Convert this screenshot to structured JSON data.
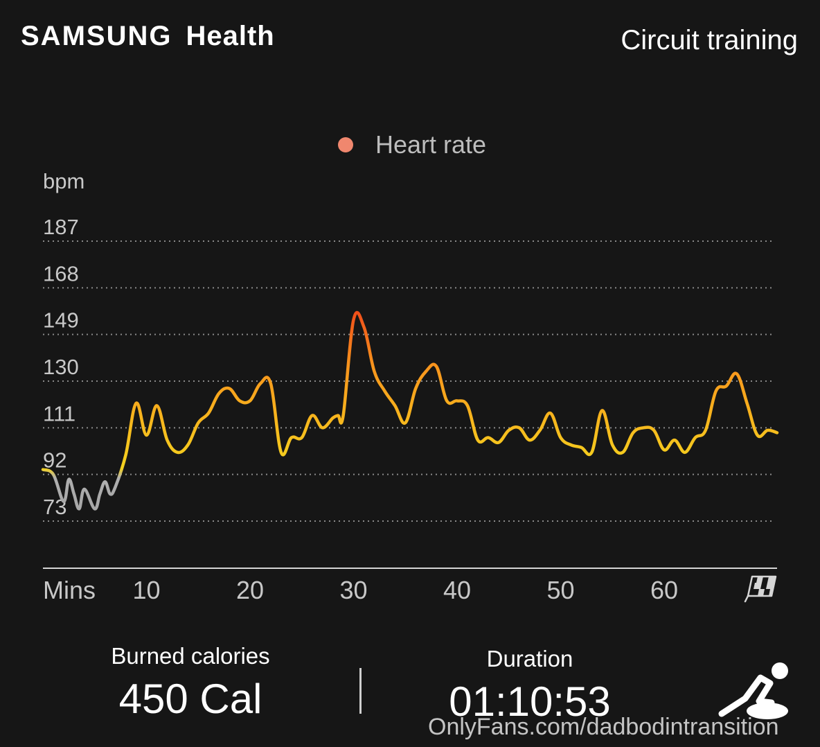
{
  "header": {
    "brand": "SAMSUNG",
    "product": "Health",
    "workout_title": "Circuit training"
  },
  "stats": {
    "calories_label": "Burned calories",
    "calories_value": "450 Cal",
    "duration_label": "Duration",
    "duration_value": "01:10:53"
  },
  "watermark": "OnlyFans.com/dadbodintransition",
  "icons": {
    "finish": "checkered-flag-icon",
    "activity": "circuit-training-icon"
  },
  "colors": {
    "background": "#161616",
    "legend_dot": "#f0876e",
    "grid": "#8a8a8a",
    "low": "#a8a8a8",
    "mid": "#f4d21f",
    "high": "#f7941d",
    "peak": "#f04a1a"
  },
  "chart_data": {
    "type": "line",
    "legend": [
      "Heart rate"
    ],
    "legend_position": "top-center",
    "ylabel": "bpm",
    "xlabel": "Mins",
    "yticks": [
      187,
      168,
      149,
      130,
      111,
      92,
      73
    ],
    "xticks": [
      10,
      20,
      30,
      40,
      50,
      60
    ],
    "ylim": [
      73,
      187
    ],
    "xlim": [
      0,
      70.9
    ],
    "grid": true,
    "series": [
      {
        "name": "Heart rate",
        "x": [
          0,
          1,
          2,
          2.5,
          3,
          3.5,
          4,
          5,
          5.5,
          6,
          6.5,
          7,
          8,
          9,
          10,
          11,
          12,
          13,
          14,
          15,
          16,
          17,
          18,
          19,
          20,
          21,
          22,
          23,
          24,
          25,
          26,
          27,
          28,
          28.5,
          29,
          30,
          31,
          32,
          33,
          34,
          35,
          36,
          37,
          38,
          39,
          40,
          41,
          42,
          43,
          44,
          45,
          46,
          47,
          48,
          49,
          50,
          51,
          52,
          53,
          54,
          55,
          56,
          57,
          58,
          59,
          60,
          61,
          62,
          63,
          64,
          65,
          66,
          67,
          68,
          69,
          70,
          70.9
        ],
        "values": [
          94,
          92,
          81,
          90,
          84,
          78,
          86,
          78,
          84,
          89,
          84,
          87,
          100,
          121,
          108,
          120,
          106,
          101,
          104,
          113,
          117,
          125,
          127,
          122,
          122,
          129,
          129,
          101,
          107,
          107,
          116,
          111,
          115,
          116,
          116,
          155,
          152,
          134,
          126,
          120,
          113,
          127,
          134,
          136,
          122,
          122,
          120,
          106,
          107,
          105,
          110,
          111,
          106,
          110,
          117,
          107,
          104,
          103,
          101,
          118,
          104,
          101,
          109,
          111,
          110,
          102,
          106,
          101,
          107,
          110,
          126,
          128,
          133,
          121,
          108,
          110,
          109
        ]
      }
    ]
  }
}
